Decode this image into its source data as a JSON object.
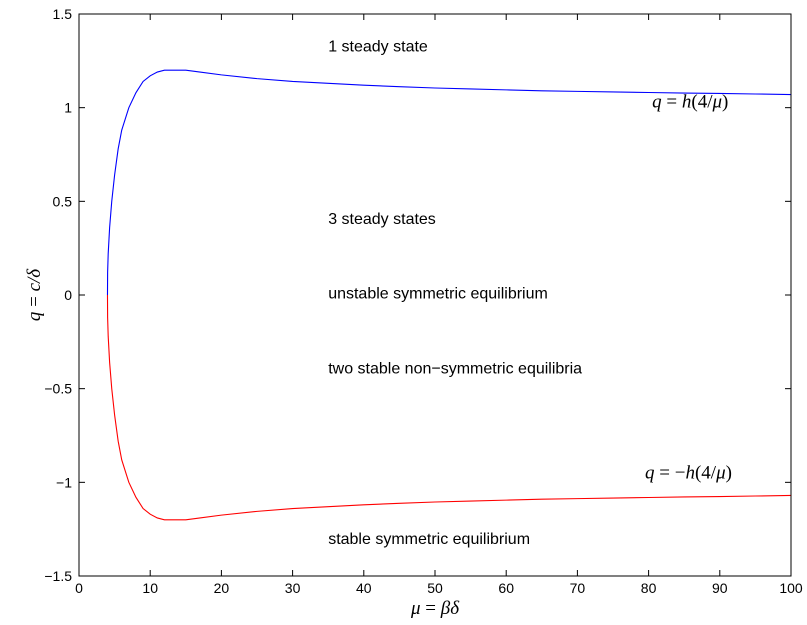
{
  "chart_data": {
    "type": "line",
    "title": "",
    "xlim": [
      0,
      100
    ],
    "ylim": [
      -1.5,
      1.5
    ],
    "x_ticks": [
      0,
      10,
      20,
      30,
      40,
      50,
      60,
      70,
      80,
      90,
      100
    ],
    "x_tick_labels": [
      "0",
      "10",
      "20",
      "30",
      "40",
      "50",
      "60",
      "70",
      "80",
      "90",
      "100"
    ],
    "y_ticks": [
      -1.5,
      -1,
      -0.5,
      0,
      0.5,
      1,
      1.5
    ],
    "y_tick_labels": [
      "−1.5",
      "−1",
      "−0.5",
      "0",
      "0.5",
      "1",
      "1.5"
    ],
    "xlabel": {
      "lhs": "μ",
      "rel": " = ",
      "rhs": "βδ"
    },
    "ylabel": {
      "lhs": "q",
      "rel": " = ",
      "rhs": "c/δ"
    },
    "grid": false,
    "series": [
      {
        "color": "#0000ff",
        "x": [
          4,
          4.02,
          4.1,
          4.3,
          4.6,
          5,
          5.5,
          6,
          7,
          8,
          9,
          10,
          11,
          12,
          13,
          14,
          15,
          17,
          20,
          25,
          30,
          35,
          40,
          45,
          50,
          55,
          60,
          65,
          70,
          75,
          80,
          85,
          90,
          95,
          100
        ],
        "y": [
          0,
          0.12,
          0.22,
          0.36,
          0.5,
          0.64,
          0.78,
          0.88,
          1.0,
          1.08,
          1.14,
          1.17,
          1.19,
          1.2,
          1.2,
          1.2,
          1.2,
          1.19,
          1.175,
          1.155,
          1.14,
          1.13,
          1.12,
          1.112,
          1.105,
          1.1,
          1.095,
          1.09,
          1.087,
          1.084,
          1.081,
          1.078,
          1.076,
          1.073,
          1.07
        ]
      },
      {
        "color": "#ff0000",
        "x": [
          4,
          4.02,
          4.1,
          4.3,
          4.6,
          5,
          5.5,
          6,
          7,
          8,
          9,
          10,
          11,
          12,
          13,
          14,
          15,
          17,
          20,
          25,
          30,
          35,
          40,
          45,
          50,
          55,
          60,
          65,
          70,
          75,
          80,
          85,
          90,
          95,
          100
        ],
        "y": [
          0,
          -0.12,
          -0.22,
          -0.36,
          -0.5,
          -0.64,
          -0.78,
          -0.88,
          -1.0,
          -1.08,
          -1.14,
          -1.17,
          -1.19,
          -1.2,
          -1.2,
          -1.2,
          -1.2,
          -1.19,
          -1.175,
          -1.155,
          -1.14,
          -1.13,
          -1.12,
          -1.112,
          -1.105,
          -1.1,
          -1.095,
          -1.09,
          -1.087,
          -1.084,
          -1.081,
          -1.078,
          -1.076,
          -1.073,
          -1.07
        ]
      }
    ],
    "annotations": [
      {
        "text": "1 steady state",
        "x": 35,
        "y": 1.3
      },
      {
        "text": "3 steady states",
        "x": 35,
        "y": 0.38
      },
      {
        "text": "unstable symmetric equilibrium",
        "x": 35,
        "y": -0.02
      },
      {
        "text": "two stable non−symmetric equilibria",
        "x": 35,
        "y": -0.42
      },
      {
        "text": "stable symmetric equilibrium",
        "x": 35,
        "y": -1.33
      }
    ],
    "curve_labels": [
      {
        "lhs": "q",
        "rel": " = ",
        "rhs_fn": "h",
        "rhs_arg_open": "(4/",
        "rhs_arg_var": "μ",
        "rhs_arg_close": ")",
        "x": 80.5,
        "y": 1.0
      },
      {
        "lhs": "q",
        "rel": " = −",
        "rhs_fn": "h",
        "rhs_arg_open": "(4/",
        "rhs_arg_var": "μ",
        "rhs_arg_close": ")",
        "x": 79.5,
        "y": -0.98
      }
    ]
  }
}
